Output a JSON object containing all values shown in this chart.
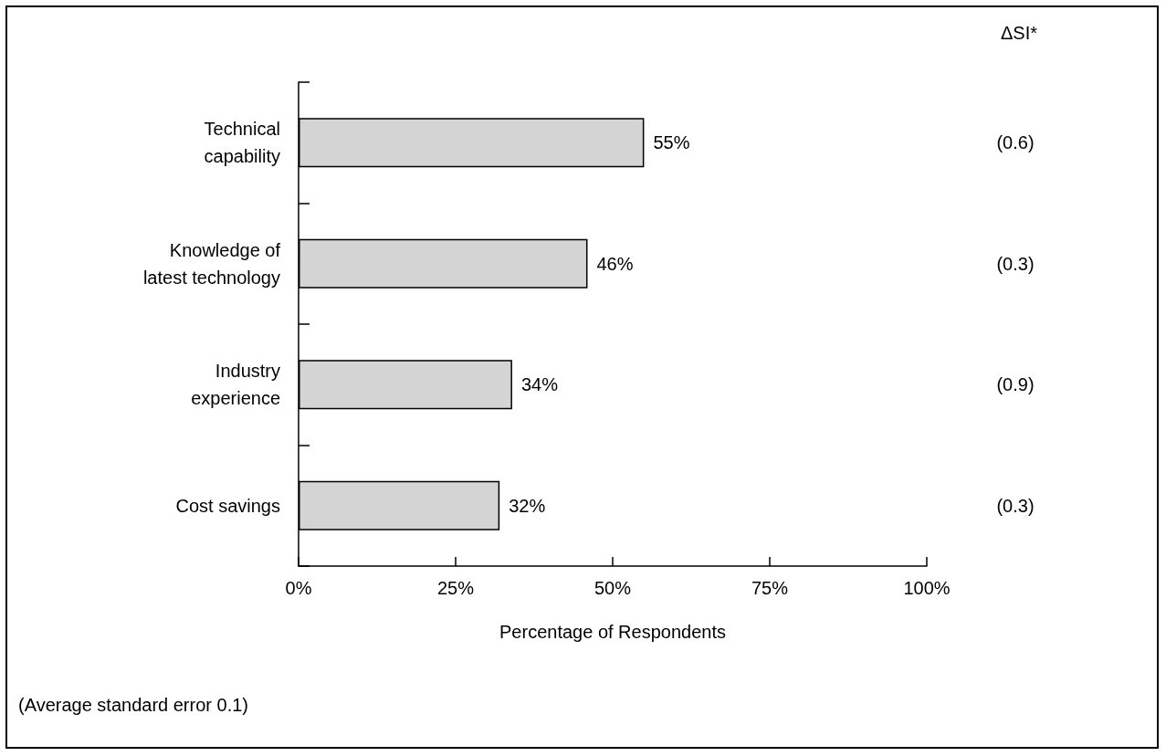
{
  "chart_data": {
    "type": "bar",
    "orientation": "horizontal",
    "xlabel": "Percentage of Respondents",
    "categories": [
      "Technical\ncapability",
      "Knowledge of\nlatest technology",
      "Industry\nexperience",
      "Cost savings"
    ],
    "series": [
      {
        "color": "#d4d4d4",
        "values": [
          55,
          46,
          34,
          32
        ],
        "value_labels": [
          "55%",
          "46%",
          "34%",
          "32%"
        ]
      }
    ],
    "xlim": [
      0,
      100
    ],
    "xticks": [
      {
        "value": 0,
        "label": "0%"
      },
      {
        "value": 25,
        "label": "25%"
      },
      {
        "value": 50,
        "label": "50%"
      },
      {
        "value": 75,
        "label": "75%"
      },
      {
        "value": 100,
        "label": "100%"
      }
    ],
    "grid": false,
    "annotations": [
      "ΔSI*",
      "(0.6)",
      "(0.3)",
      "(0.9)",
      "(0.3)",
      "(Average standard error 0.1)"
    ]
  }
}
